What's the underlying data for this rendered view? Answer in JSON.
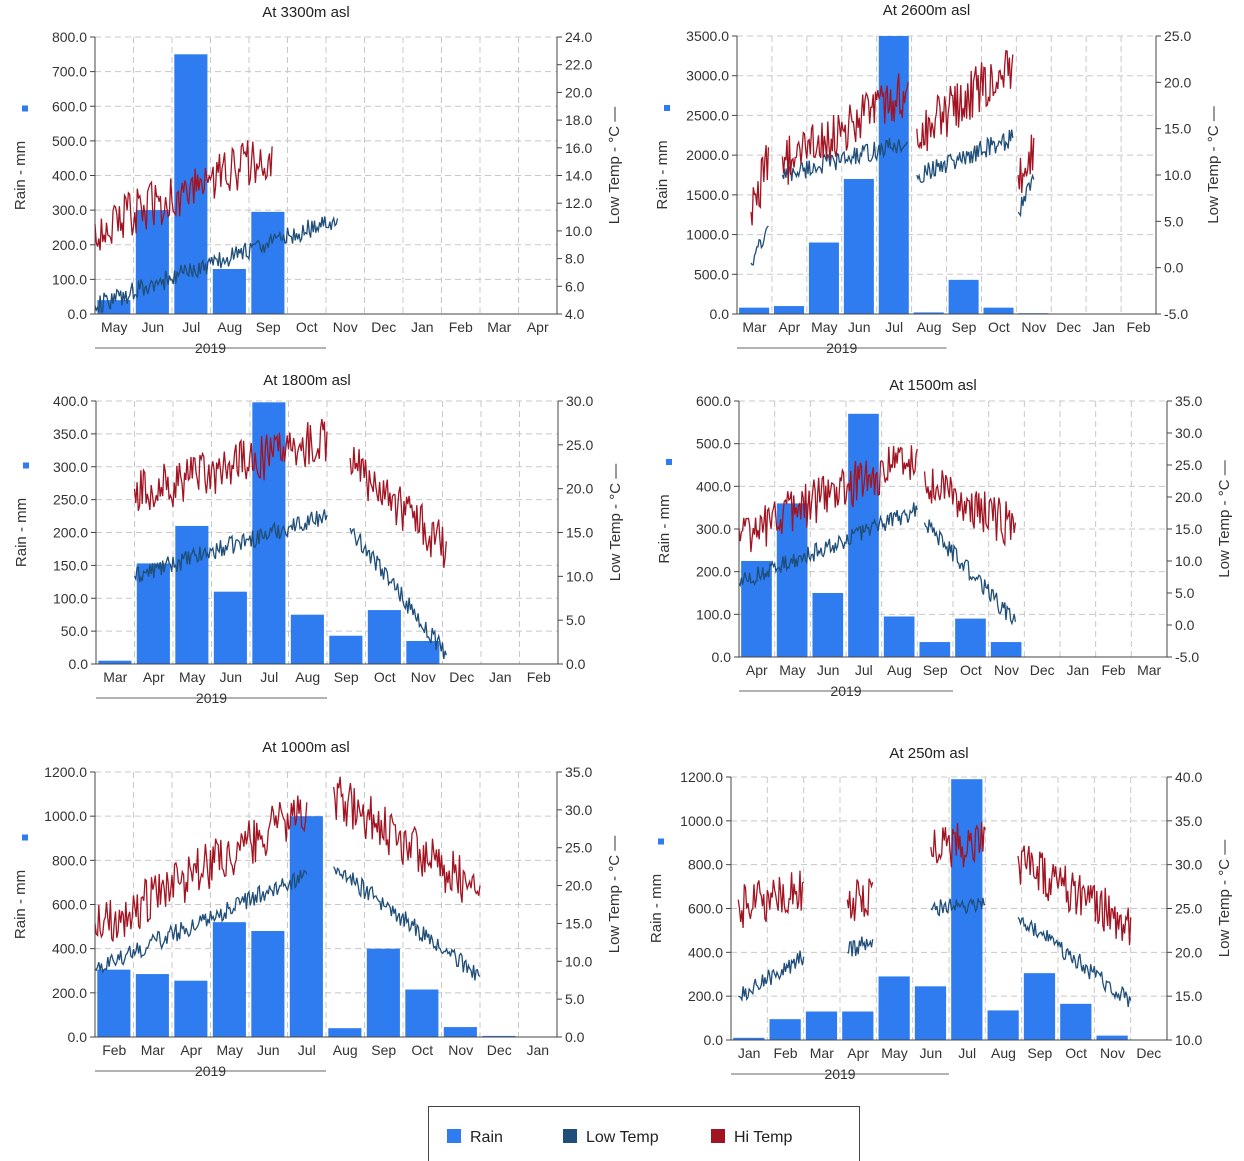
{
  "legend": {
    "rain_label": "Rain",
    "low_label": "Low Temp",
    "hi_label": "Hi Temp"
  },
  "colors": {
    "rain": "#2f7cf0",
    "low_temp": "#1f4e79",
    "hi_temp": "#a31422",
    "grid": "#c8c8c8"
  },
  "chart_data": [
    {
      "type": "bar",
      "title": "At 3300m asl",
      "ylabel": "Rain - mm",
      "y2label": "Low Temp - °C —",
      "year_label": "2019",
      "categories": [
        "May",
        "Jun",
        "Jul",
        "Aug",
        "Sep",
        "Oct",
        "Nov",
        "Dec",
        "Jan",
        "Feb",
        "Mar",
        "Apr"
      ],
      "ylim": [
        0,
        800
      ],
      "yticks": [
        "0.0",
        "100.0",
        "200.0",
        "300.0",
        "400.0",
        "500.0",
        "600.0",
        "700.0",
        "800.0"
      ],
      "y2lim": [
        4,
        24
      ],
      "y2ticks": [
        "4.0",
        "6.0",
        "8.0",
        "10.0",
        "12.0",
        "14.0",
        "16.0",
        "18.0",
        "20.0",
        "22.0",
        "24.0"
      ],
      "series": [
        {
          "name": "Rain",
          "values": [
            40,
            300,
            750,
            130,
            295,
            0,
            0,
            0,
            0,
            0,
            0,
            0
          ]
        },
        {
          "name": "Low Temp",
          "segments": [
            [
              0.0,
              6.3,
              4.6,
              10.9
            ]
          ]
        },
        {
          "name": "Hi Temp",
          "segments": [
            [
              0.0,
              4.6,
              10.5,
              16.1
            ]
          ]
        }
      ]
    },
    {
      "type": "bar",
      "title": "At 2600m asl",
      "ylabel": "Rain - mm",
      "y2label": "Low Temp - °C —",
      "year_label": "2019",
      "categories": [
        "Mar",
        "Apr",
        "May",
        "Jun",
        "Jul",
        "Aug",
        "Sep",
        "Oct",
        "Nov",
        "Dec",
        "Jan",
        "Feb"
      ],
      "ylim": [
        0,
        3500
      ],
      "yticks": [
        "0.0",
        "500.0",
        "1000.0",
        "1500.0",
        "2000.0",
        "2500.0",
        "3000.0",
        "3500.0"
      ],
      "y2lim": [
        -5,
        25
      ],
      "y2ticks": [
        "-5.0",
        "0.0",
        "5.0",
        "10.0",
        "15.0",
        "20.0",
        "25.0"
      ],
      "series": [
        {
          "name": "Rain",
          "values": [
            80,
            100,
            900,
            1700,
            3500,
            20,
            430,
            80,
            10,
            0,
            0,
            0
          ]
        },
        {
          "name": "Low Temp",
          "segments": [
            [
              0.4,
              0.9,
              0.5,
              4.5
            ],
            [
              1.3,
              4.9,
              10.0,
              13.5
            ],
            [
              5.15,
              7.9,
              10.0,
              14.0
            ],
            [
              8.05,
              8.5,
              6.0,
              9.5
            ]
          ]
        },
        {
          "name": "Hi Temp",
          "segments": [
            [
              0.4,
              0.9,
              6.0,
              13.0
            ],
            [
              1.3,
              4.9,
              12.0,
              20.0
            ],
            [
              5.15,
              7.9,
              15.0,
              23.0
            ],
            [
              8.05,
              8.5,
              10.0,
              14.0
            ]
          ]
        }
      ]
    },
    {
      "type": "bar",
      "title": "At 1800m asl",
      "ylabel": "Rain - mm",
      "y2label": "Low Temp - °C —",
      "year_label": "2019",
      "categories": [
        "Mar",
        "Apr",
        "May",
        "Jun",
        "Jul",
        "Aug",
        "Sep",
        "Oct",
        "Nov",
        "Dec",
        "Jan",
        "Feb"
      ],
      "ylim": [
        0,
        400
      ],
      "yticks": [
        "0.0",
        "50.0",
        "100.0",
        "150.0",
        "200.0",
        "250.0",
        "300.0",
        "350.0",
        "400.0"
      ],
      "y2lim": [
        0,
        30
      ],
      "y2ticks": [
        "0.0",
        "5.0",
        "10.0",
        "15.0",
        "20.0",
        "25.0",
        "30.0"
      ],
      "series": [
        {
          "name": "Rain",
          "values": [
            5,
            153,
            210,
            110,
            398,
            75,
            43,
            82,
            35,
            0,
            0,
            0
          ]
        },
        {
          "name": "Low Temp",
          "segments": [
            [
              1.0,
              6.0,
              10.0,
              17.0
            ],
            [
              6.6,
              9.1,
              15.5,
              1.0
            ]
          ]
        },
        {
          "name": "Hi Temp",
          "segments": [
            [
              1.0,
              6.0,
              20.0,
              26.5
            ],
            [
              6.6,
              9.1,
              23.5,
              14.0
            ]
          ]
        }
      ]
    },
    {
      "type": "bar",
      "title": "At 1500m asl",
      "ylabel": "Rain - mm",
      "y2label": "Low Temp - °C —",
      "year_label": "2019",
      "categories": [
        "Apr",
        "May",
        "Jun",
        "Jul",
        "Aug",
        "Sep",
        "Oct",
        "Nov",
        "Dec",
        "Jan",
        "Feb",
        "Mar"
      ],
      "ylim": [
        0,
        600
      ],
      "yticks": [
        "0.0",
        "100.0",
        "200.0",
        "300.0",
        "400.0",
        "500.0",
        "600.0"
      ],
      "y2lim": [
        -5,
        35
      ],
      "y2ticks": [
        "-5.0",
        "0.0",
        "5.0",
        "10.0",
        "15.0",
        "20.0",
        "25.0",
        "30.0",
        "35.0"
      ],
      "series": [
        {
          "name": "Rain",
          "values": [
            225,
            360,
            150,
            570,
            95,
            35,
            90,
            35,
            0,
            0,
            0,
            0
          ]
        },
        {
          "name": "Low Temp",
          "segments": [
            [
              0.0,
              5.0,
              6.5,
              18.0
            ],
            [
              5.2,
              7.75,
              16.0,
              0.5
            ]
          ]
        },
        {
          "name": "Hi Temp",
          "segments": [
            [
              0.0,
              5.0,
              15.0,
              27.5
            ],
            [
              5.2,
              7.75,
              24.0,
              16.0
            ]
          ]
        }
      ]
    },
    {
      "type": "bar",
      "title": "At 1000m asl",
      "ylabel": "Rain - mm",
      "y2label": "Low Temp - °C —",
      "year_label": "2019",
      "categories": [
        "Feb",
        "Mar",
        "Apr",
        "May",
        "Jun",
        "Jul",
        "Aug",
        "Sep",
        "Oct",
        "Nov",
        "Dec",
        "Jan"
      ],
      "ylim": [
        0,
        1200
      ],
      "yticks": [
        "0.0",
        "200.0",
        "400.0",
        "600.0",
        "800.0",
        "1000.0",
        "1200.0"
      ],
      "y2lim": [
        0,
        35
      ],
      "y2ticks": [
        "0.0",
        "5.0",
        "10.0",
        "15.0",
        "20.0",
        "25.0",
        "30.0",
        "35.0"
      ],
      "series": [
        {
          "name": "Rain",
          "values": [
            305,
            285,
            255,
            520,
            480,
            1000,
            40,
            400,
            215,
            45,
            5,
            0
          ]
        },
        {
          "name": "Low Temp",
          "segments": [
            [
              0.0,
              5.5,
              9.0,
              21.5
            ],
            [
              6.2,
              10.0,
              22.5,
              8.0
            ]
          ]
        },
        {
          "name": "Hi Temp",
          "segments": [
            [
              0.0,
              5.5,
              15.0,
              31.0
            ],
            [
              6.2,
              10.0,
              33.0,
              20.0
            ]
          ]
        }
      ]
    },
    {
      "type": "bar",
      "title": "At 250m asl",
      "ylabel": "Rain - mm",
      "y2label": "Low Temp - °C —",
      "year_label": "2019",
      "categories": [
        "Jan",
        "Feb",
        "Mar",
        "Apr",
        "May",
        "Jun",
        "Jul",
        "Aug",
        "Sep",
        "Oct",
        "Nov",
        "Dec"
      ],
      "ylim": [
        0,
        1200
      ],
      "yticks": [
        "0.0",
        "200.0",
        "400.0",
        "600.0",
        "800.0",
        "1000.0",
        "1200.0"
      ],
      "y2lim": [
        10,
        40
      ],
      "y2ticks": [
        "10.0",
        "15.0",
        "20.0",
        "25.0",
        "30.0",
        "35.0",
        "40.0"
      ],
      "series": [
        {
          "name": "Rain",
          "values": [
            10,
            95,
            130,
            130,
            290,
            245,
            1190,
            135,
            305,
            165,
            20,
            0
          ]
        },
        {
          "name": "Low Temp",
          "segments": [
            [
              0.2,
              2.0,
              15.0,
              19.5
            ],
            [
              3.2,
              3.9,
              20.0,
              21.5
            ],
            [
              5.5,
              7.0,
              25.0,
              25.5
            ],
            [
              7.9,
              11.0,
              24.0,
              14.5
            ]
          ]
        },
        {
          "name": "Hi Temp",
          "segments": [
            [
              0.2,
              2.0,
              26.0,
              28.0
            ],
            [
              3.2,
              3.9,
              26.0,
              28.0
            ],
            [
              5.5,
              7.0,
              32.0,
              34.0
            ],
            [
              7.9,
              11.0,
              31.0,
              24.0
            ]
          ]
        }
      ]
    }
  ]
}
